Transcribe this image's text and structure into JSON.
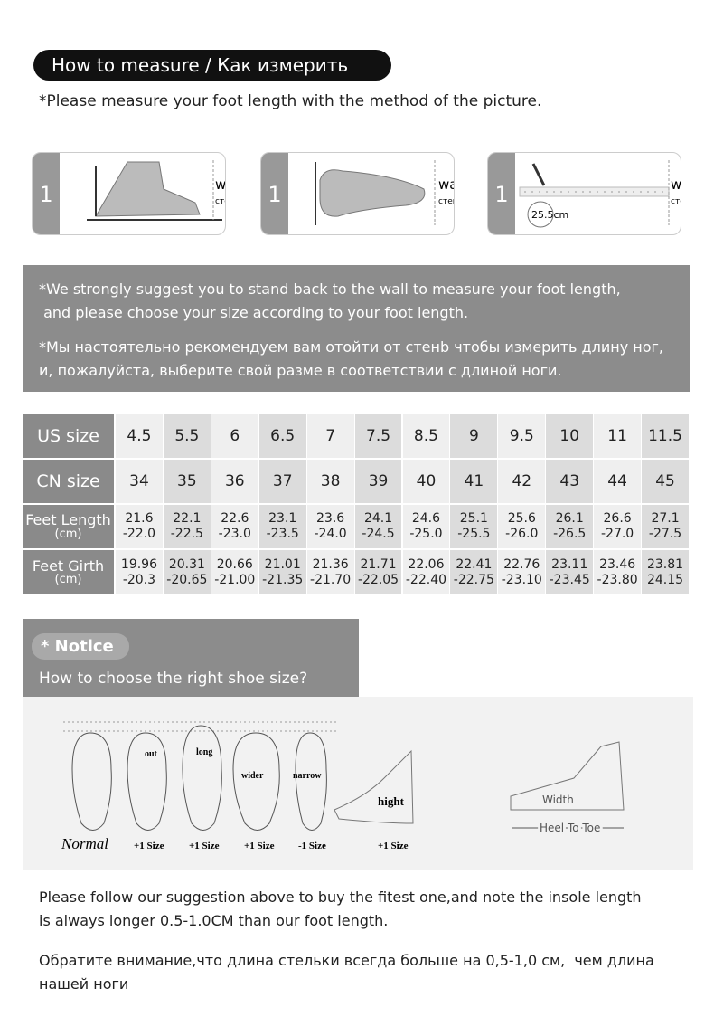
{
  "header": {
    "title": "How to measure / Как измерить",
    "subtitle": "*Please measure your foot length with the method of the picture."
  },
  "steps": [
    {
      "number": "1",
      "wall": "wall",
      "wall_ru": "стена"
    },
    {
      "number": "1",
      "wall": "wall",
      "wall_ru": "стена"
    },
    {
      "number": "1",
      "wall": "wall",
      "wall_ru": "стена",
      "measure": "25.5cm"
    }
  ],
  "suggestion": {
    "en": [
      "*We strongly suggest you to stand back to the wall to measure your foot length,",
      " and please choose your size according to your foot length."
    ],
    "ru": [
      "*Мы настоятельно рекомендуем вам отойти от стенb чтобы измерить длину ног,",
      "и, пожалуйста, выберите свой разме в соответствии с длиной ноги."
    ]
  },
  "table": {
    "rows": [
      {
        "label": [
          "US size"
        ],
        "cells": [
          [
            "4.5"
          ],
          [
            "5.5"
          ],
          [
            "6"
          ],
          [
            "6.5"
          ],
          [
            "7"
          ],
          [
            "7.5"
          ],
          [
            "8.5"
          ],
          [
            "9"
          ],
          [
            "9.5"
          ],
          [
            "10"
          ],
          [
            "11"
          ],
          [
            "11.5"
          ]
        ]
      },
      {
        "label": [
          "CN size"
        ],
        "cells": [
          [
            "34"
          ],
          [
            "35"
          ],
          [
            "36"
          ],
          [
            "37"
          ],
          [
            "38"
          ],
          [
            "39"
          ],
          [
            "40"
          ],
          [
            "41"
          ],
          [
            "42"
          ],
          [
            "43"
          ],
          [
            "44"
          ],
          [
            "45"
          ]
        ]
      },
      {
        "label": [
          "Feet Length",
          "(cm)"
        ],
        "cells": [
          [
            "21.6",
            "-22.0"
          ],
          [
            "22.1",
            "-22.5"
          ],
          [
            "22.6",
            "-23.0"
          ],
          [
            "23.1",
            "-23.5"
          ],
          [
            "23.6",
            "-24.0"
          ],
          [
            "24.1",
            "-24.5"
          ],
          [
            "24.6",
            "-25.0"
          ],
          [
            "25.1",
            "-25.5"
          ],
          [
            "25.6",
            "-26.0"
          ],
          [
            "26.1",
            "-26.5"
          ],
          [
            "26.6",
            "-27.0"
          ],
          [
            "27.1",
            "-27.5"
          ]
        ]
      },
      {
        "label": [
          "Feet Girth",
          "(cm)"
        ],
        "cells": [
          [
            "19.96",
            "-20.3"
          ],
          [
            "20.31",
            "-20.65"
          ],
          [
            "20.66",
            "-21.00"
          ],
          [
            "21.01",
            "-21.35"
          ],
          [
            "21.36",
            "-21.70"
          ],
          [
            "21.71",
            "-22.05"
          ],
          [
            "22.06",
            "-22.40"
          ],
          [
            "22.41",
            "-22.75"
          ],
          [
            "22.76",
            "-23.10"
          ],
          [
            "23.11",
            "-23.45"
          ],
          [
            "23.46",
            "-23.80"
          ],
          [
            "23.81",
            "24.15"
          ]
        ]
      }
    ]
  },
  "notice": {
    "title": "* Notice",
    "question": "How to choose the right shoe size?"
  },
  "diagram": {
    "normal": "Normal",
    "feet": [
      {
        "label": "out",
        "size": "+1 Size"
      },
      {
        "label": "long",
        "size": "+1 Size"
      },
      {
        "label": "wider",
        "size": "+1 Size"
      },
      {
        "label": "narrow",
        "size": "-1 Size"
      }
    ],
    "side": {
      "label": "hight",
      "size": "+1 Size"
    },
    "width": "Width",
    "heel_to_toe": "Heel To Toe"
  },
  "footer": {
    "en": [
      "Please follow our suggestion above to buy the fitest one,and note the insole length",
      "is always longer 0.5-1.0CM than our foot length."
    ],
    "ru": [
      "Обратите внимание,что длина стельки всегда больше на 0,5-1,0 см,  чем длина",
      "нашей ноги"
    ]
  }
}
